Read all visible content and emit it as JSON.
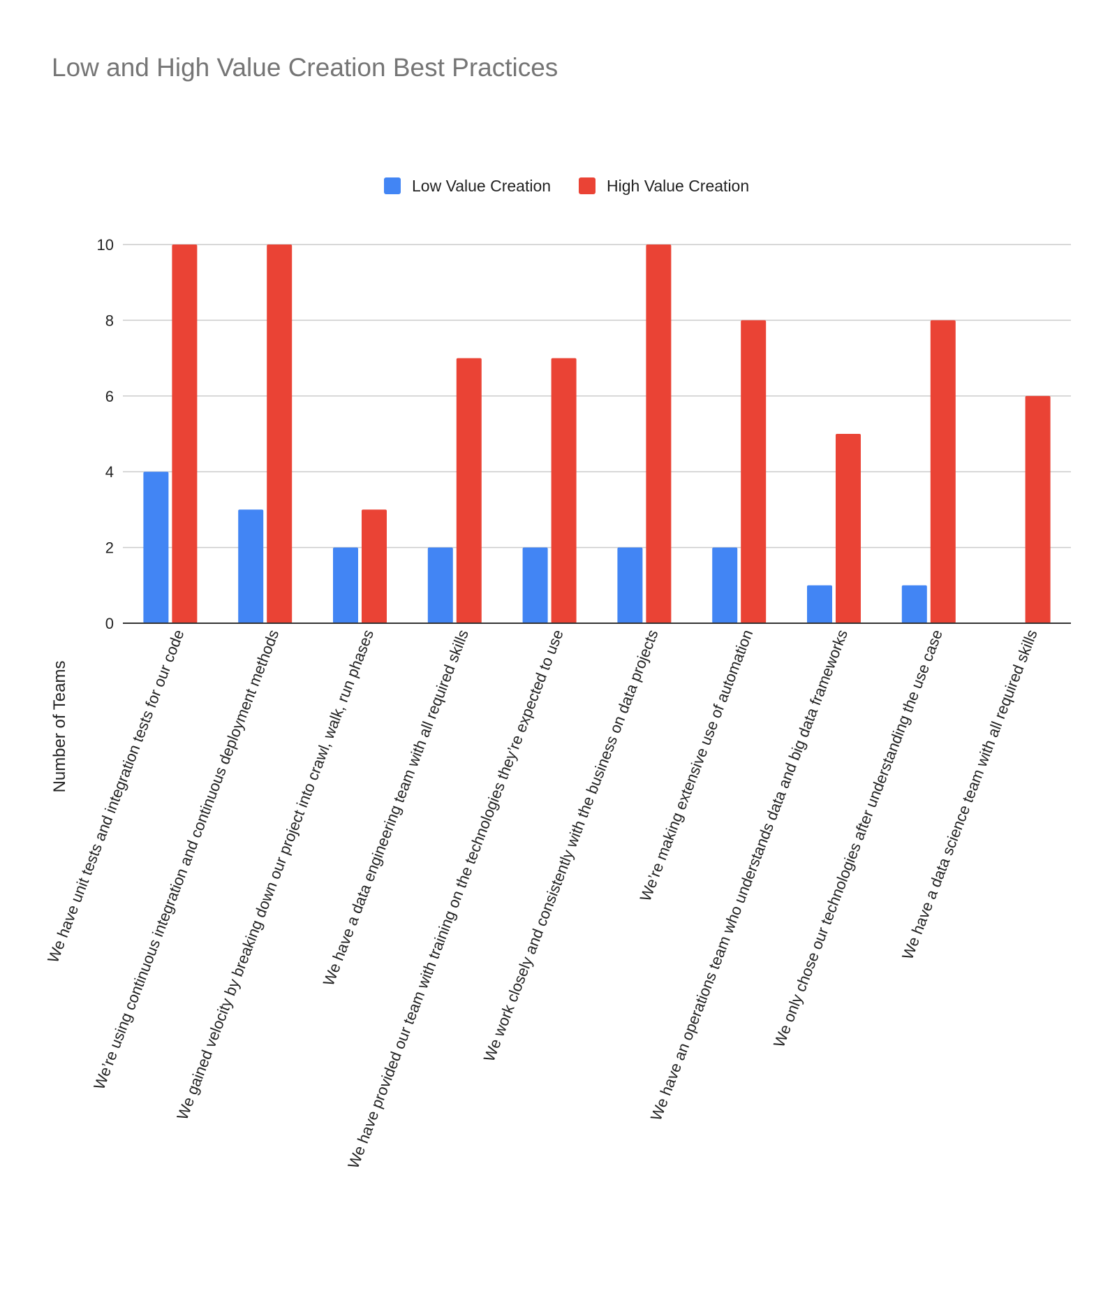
{
  "chart_data": {
    "type": "bar",
    "title": "Low and High Value Creation Best Practices",
    "xlabel": "",
    "ylabel": "Number of Teams",
    "ylim": [
      0,
      10
    ],
    "yticks": [
      0,
      2,
      4,
      6,
      8,
      10
    ],
    "grid": true,
    "legend_position": "top-center",
    "categories": [
      "We have unit tests and integration tests for our code",
      "We’re using continuous integration and continuous deployment methods",
      "We gained velocity by breaking down our project into crawl, walk, run phases",
      "We have a data engineering team with all required skills",
      "We have provided our team with training on the technologies they’re expected to use",
      "We work closely and consistently with the business on data projects",
      "We’re making extensive use of automation",
      "We have an operations team who understands data and big data frameworks",
      "We only chose our technologies after understanding the use case",
      "We have a data science team with all required skills"
    ],
    "series": [
      {
        "name": "Low Value Creation",
        "color": "#4285f4",
        "values": [
          4,
          3,
          2,
          2,
          2,
          2,
          2,
          1,
          1,
          0
        ]
      },
      {
        "name": "High Value Creation",
        "color": "#ea4335",
        "values": [
          10,
          10,
          3,
          7,
          7,
          10,
          8,
          5,
          8,
          6
        ]
      }
    ]
  }
}
